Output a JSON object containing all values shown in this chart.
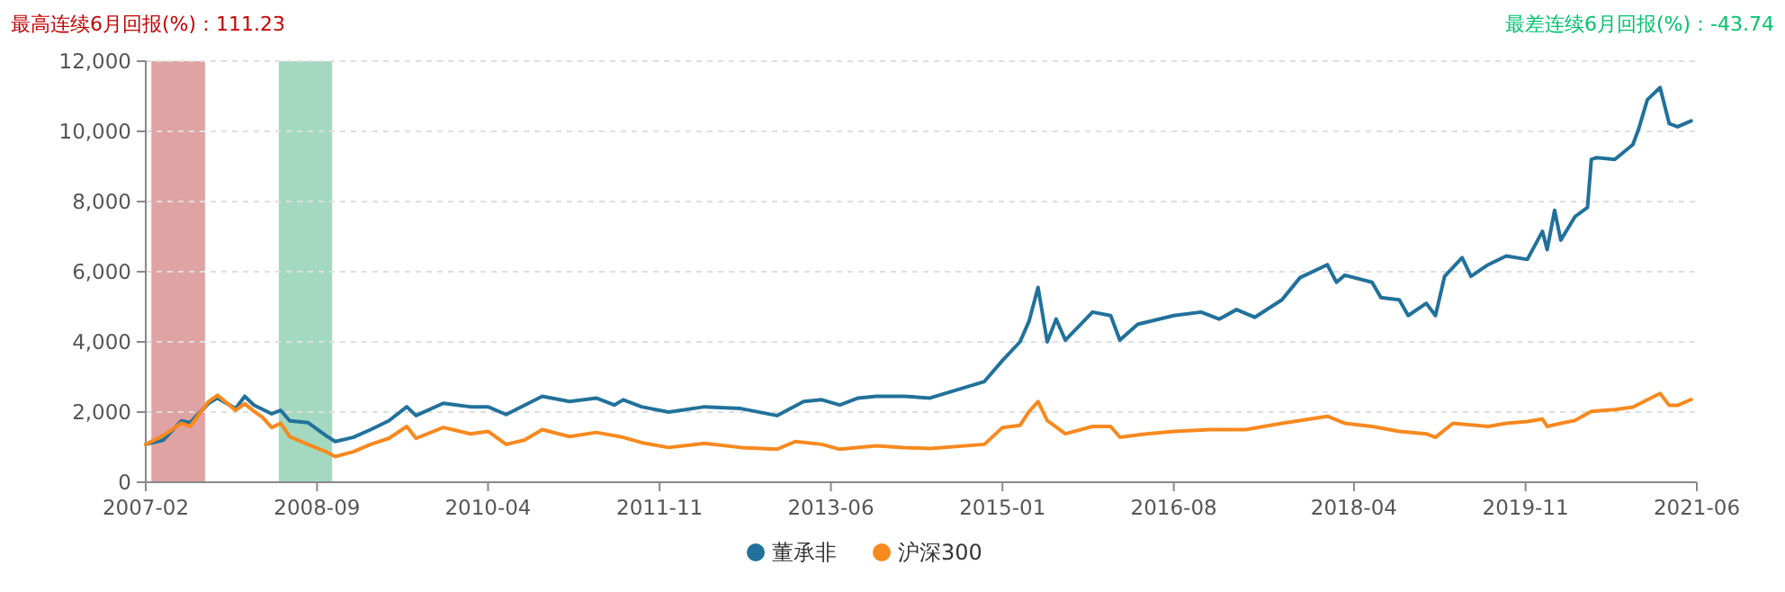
{
  "chart_data": {
    "type": "line",
    "annotations": [
      "最高连续6月回报(%)：111.23",
      "最差连续6月回报(%)：-43.74"
    ],
    "xlim": [
      "2007-02",
      "2021-06"
    ],
    "xticks": [
      "2007-02",
      "2008-09",
      "2010-04",
      "2011-11",
      "2013-06",
      "2015-01",
      "2016-08",
      "2018-04",
      "2019-11",
      "2021-06"
    ],
    "ylim": [
      0,
      12000
    ],
    "yticks": [
      0,
      {
        "value": 2000,
        "label": "2,000"
      },
      {
        "value": 4000,
        "label": "4,000"
      },
      {
        "value": 6000,
        "label": "6,000"
      },
      {
        "value": 8000,
        "label": "8,000"
      },
      {
        "value": 10000,
        "label": "10,000"
      },
      {
        "value": 12000,
        "label": "12,000"
      }
    ],
    "grid": "y",
    "legend": "bottom",
    "marker": "none",
    "line_style": "solid",
    "bands": [
      {
        "axis": "x",
        "from": "2007-02-20",
        "to": "2007-08-20",
        "color": "#e0a3a3"
      },
      {
        "axis": "x",
        "from": "2008-04-25",
        "to": "2008-10-22",
        "color": "#a3d9c1"
      }
    ],
    "series": [
      {
        "name": "董承非",
        "color": "#21719b",
        "x": [
          "2007-02",
          "2007-04",
          "2007-06",
          "2007-07",
          "2007-09",
          "2007-10",
          "2007-12",
          "2008-01",
          "2008-02",
          "2008-04",
          "2008-05",
          "2008-06",
          "2008-08",
          "2008-10",
          "2008-11",
          "2009-01",
          "2009-03",
          "2009-05",
          "2009-07",
          "2009-08",
          "2009-11",
          "2010-02",
          "2010-04",
          "2010-06",
          "2010-10",
          "2011-01",
          "2011-04",
          "2011-06",
          "2011-07",
          "2011-09",
          "2011-12",
          "2012-04",
          "2012-08",
          "2012-12",
          "2013-03",
          "2013-05",
          "2013-07",
          "2013-09",
          "2013-11",
          "2014-02",
          "2014-05",
          "2014-11",
          "2015-01",
          "2015-03",
          "2015-04",
          "2015-05",
          "2015-06",
          "2015-07",
          "2015-08",
          "2015-11",
          "2016-01",
          "2016-02",
          "2016-04",
          "2016-08",
          "2016-11",
          "2017-01",
          "2017-03",
          "2017-05",
          "2017-08",
          "2017-10",
          "2018-01",
          "2018-02",
          "2018-03",
          "2018-06",
          "2018-07",
          "2018-09",
          "2018-10",
          "2018-12",
          "2019-01",
          "2019-02",
          "2019-04",
          "2019-05",
          "2019-06-28",
          "2019-08-28",
          "2019-11-07",
          "2019-12-28",
          "2020-01-13",
          "2020-02-07",
          "2020-02-28",
          "2020-04-16",
          "2020-05-28",
          "2020-06-10",
          "2020-06-28",
          "2020-08-28",
          "2020-10-28",
          "2020-11-16",
          "2020-12-16",
          "2021-01-28",
          "2021-02-28",
          "2021-03-28",
          "2021-05-13"
        ],
        "values": [
          1080,
          1200,
          1750,
          1700,
          2250,
          2400,
          2100,
          2450,
          2200,
          1950,
          2050,
          1750,
          1700,
          1330,
          1160,
          1280,
          1500,
          1750,
          2150,
          1900,
          2250,
          2150,
          2150,
          1930,
          2450,
          2300,
          2400,
          2200,
          2350,
          2150,
          2000,
          2150,
          2100,
          1900,
          2300,
          2350,
          2200,
          2400,
          2450,
          2450,
          2400,
          2870,
          3470,
          4000,
          4600,
          5550,
          4000,
          4650,
          4050,
          4850,
          4750,
          4050,
          4500,
          4750,
          4850,
          4650,
          4920,
          4700,
          5200,
          5830,
          6200,
          5700,
          5900,
          5700,
          5260,
          5200,
          4750,
          5100,
          4750,
          5870,
          6400,
          5870,
          6200,
          6450,
          6350,
          7150,
          6630,
          7750,
          6900,
          7570,
          7830,
          9200,
          9250,
          9200,
          9620,
          10050,
          10900,
          11250,
          10220,
          10130,
          10300
        ]
      },
      {
        "name": "沪深300",
        "color": "#f7891f",
        "x": [
          "2007-02",
          "2007-04",
          "2007-06",
          "2007-07",
          "2007-09",
          "2007-10",
          "2007-12",
          "2008-01",
          "2008-02",
          "2008-03",
          "2008-04",
          "2008-05",
          "2008-06",
          "2008-08",
          "2008-10",
          "2008-11",
          "2009-01",
          "2009-03",
          "2009-05",
          "2009-07",
          "2009-08",
          "2009-11",
          "2010-02",
          "2010-04",
          "2010-06",
          "2010-08",
          "2010-10",
          "2011-01",
          "2011-04",
          "2011-07",
          "2011-09",
          "2011-12",
          "2012-04",
          "2012-08",
          "2012-12",
          "2013-02",
          "2013-05",
          "2013-07",
          "2013-11",
          "2014-02",
          "2014-05",
          "2014-11",
          "2015-01",
          "2015-03",
          "2015-04",
          "2015-05",
          "2015-06",
          "2015-08",
          "2015-11",
          "2016-01",
          "2016-02",
          "2016-05",
          "2016-08",
          "2016-12",
          "2017-04",
          "2017-08",
          "2018-01",
          "2018-03",
          "2018-06",
          "2018-09",
          "2018-12",
          "2019-01",
          "2019-03",
          "2019-06-28",
          "2019-08-28",
          "2019-11-07",
          "2019-12-28",
          "2020-01-13",
          "2020-02-28",
          "2020-04-16",
          "2020-06-10",
          "2020-08-28",
          "2020-10-28",
          "2021-01-28",
          "2021-02-28",
          "2021-03-28",
          "2021-05-13"
        ],
        "values": [
          1080,
          1330,
          1680,
          1590,
          2300,
          2480,
          2050,
          2240,
          2020,
          1850,
          1560,
          1680,
          1300,
          1080,
          870,
          730,
          870,
          1080,
          1250,
          1590,
          1250,
          1560,
          1380,
          1450,
          1080,
          1200,
          1500,
          1300,
          1420,
          1280,
          1130,
          990,
          1110,
          990,
          940,
          1160,
          1080,
          940,
          1040,
          990,
          960,
          1080,
          1560,
          1620,
          2020,
          2300,
          1760,
          1380,
          1590,
          1590,
          1280,
          1380,
          1450,
          1500,
          1500,
          1680,
          1880,
          1680,
          1590,
          1450,
          1380,
          1280,
          1680,
          1590,
          1680,
          1730,
          1800,
          1590,
          1680,
          1760,
          2020,
          2070,
          2140,
          2530,
          2190,
          2190,
          2360
        ]
      }
    ]
  }
}
